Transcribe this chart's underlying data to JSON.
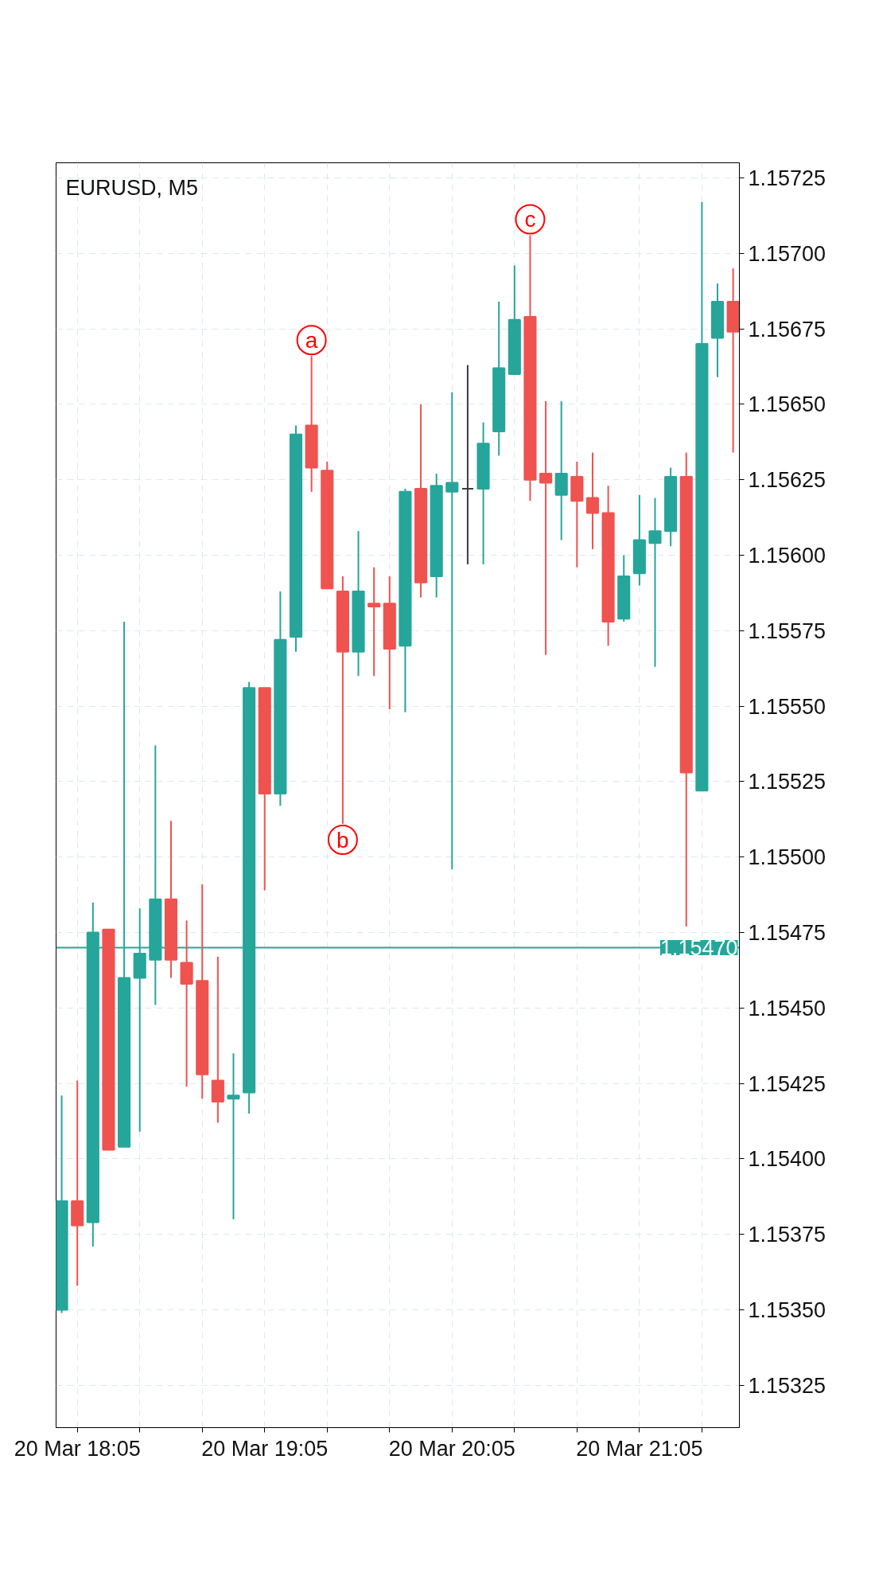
{
  "chart_data": {
    "type": "candlestick",
    "title": "EURUSD, M5",
    "categories": [
      null,
      "20 Mar 18:05",
      null,
      null,
      null,
      null,
      null,
      null,
      null,
      null,
      null,
      null,
      null,
      "20 Mar 19:05",
      null,
      null,
      null,
      null,
      null,
      null,
      null,
      null,
      null,
      null,
      null,
      "20 Mar 20:05",
      null,
      null,
      null,
      null,
      null,
      null,
      null,
      null,
      null,
      null,
      null,
      "20 Mar 21:05",
      null,
      null,
      null,
      null,
      null,
      null
    ],
    "ohlc": [
      [
        1.1535,
        1.15421,
        1.15349,
        1.15386
      ],
      [
        1.15386,
        1.15426,
        1.15358,
        1.15378
      ],
      [
        1.15379,
        1.15485,
        1.15371,
        1.15475
      ],
      [
        1.15476,
        1.15476,
        1.15403,
        1.15403
      ],
      [
        1.15404,
        1.15578,
        1.15404,
        1.1546
      ],
      [
        1.1546,
        1.15483,
        1.15409,
        1.15468
      ],
      [
        1.15466,
        1.15537,
        1.15451,
        1.15486
      ],
      [
        1.15486,
        1.15512,
        1.1546,
        1.15466
      ],
      [
        1.15465,
        1.15479,
        1.15424,
        1.15458
      ],
      [
        1.15459,
        1.15491,
        1.1542,
        1.15428
      ],
      [
        1.15426,
        1.15467,
        1.15412,
        1.15419
      ],
      [
        1.1542,
        1.15435,
        1.1538,
        1.15421
      ],
      [
        1.15422,
        1.15558,
        1.15415,
        1.15556
      ],
      [
        1.15556,
        1.15556,
        1.15489,
        1.15521
      ],
      [
        1.15521,
        1.15588,
        1.15517,
        1.15572
      ],
      [
        1.15573,
        1.15643,
        1.15568,
        1.1564
      ],
      [
        1.15643,
        1.15666,
        1.15621,
        1.15629
      ],
      [
        1.15628,
        1.15631,
        1.15589,
        1.15589
      ],
      [
        1.15588,
        1.15593,
        1.15511,
        1.15568
      ],
      [
        1.15568,
        1.15608,
        1.1556,
        1.15588
      ],
      [
        1.15584,
        1.15596,
        1.1556,
        1.15583
      ],
      [
        1.15584,
        1.15593,
        1.15549,
        1.15569
      ],
      [
        1.1557,
        1.15622,
        1.15548,
        1.15621
      ],
      [
        1.15622,
        1.1565,
        1.15586,
        1.15591
      ],
      [
        1.15593,
        1.15627,
        1.15586,
        1.15623
      ],
      [
        1.15621,
        1.15654,
        1.15496,
        1.15624
      ],
      [
        1.15622,
        1.15663,
        1.15597,
        1.15622
      ],
      [
        1.15622,
        1.15644,
        1.15597,
        1.15637
      ],
      [
        1.15641,
        1.15684,
        1.15633,
        1.15662
      ],
      [
        1.1566,
        1.15696,
        1.1566,
        1.15678
      ],
      [
        1.15679,
        1.15706,
        1.15618,
        1.15625
      ],
      [
        1.15627,
        1.15651,
        1.15567,
        1.15624
      ],
      [
        1.1562,
        1.15651,
        1.15605,
        1.15627
      ],
      [
        1.15626,
        1.15631,
        1.15596,
        1.15618
      ],
      [
        1.15619,
        1.15634,
        1.15602,
        1.15614
      ],
      [
        1.15614,
        1.15623,
        1.1557,
        1.15578
      ],
      [
        1.15579,
        1.156,
        1.15578,
        1.15593
      ],
      [
        1.15594,
        1.1562,
        1.1559,
        1.15605
      ],
      [
        1.15604,
        1.15619,
        1.15563,
        1.15608
      ],
      [
        1.15608,
        1.15629,
        1.15603,
        1.15626
      ],
      [
        1.15626,
        1.15634,
        1.15477,
        1.15528
      ],
      [
        1.15522,
        1.15717,
        1.15522,
        1.1567
      ],
      [
        1.15672,
        1.1569,
        1.15659,
        1.15684
      ],
      [
        1.15684,
        1.15695,
        1.15634,
        1.15674
      ]
    ],
    "colors": [
      "#26a69a",
      "#ef5350",
      "#26a69a",
      "#ef5350",
      "#26a69a",
      "#26a69a",
      "#26a69a",
      "#ef5350",
      "#ef5350",
      "#ef5350",
      "#ef5350",
      "#26a69a",
      "#26a69a",
      "#ef5350",
      "#26a69a",
      "#26a69a",
      "#ef5350",
      "#ef5350",
      "#ef5350",
      "#26a69a",
      "#ef5350",
      "#ef5350",
      "#26a69a",
      "#ef5350",
      "#26a69a",
      "#26a69a",
      "#3c3c46",
      "#26a69a",
      "#26a69a",
      "#26a69a",
      "#ef5350",
      "#ef5350",
      "#26a69a",
      "#ef5350",
      "#ef5350",
      "#ef5350",
      "#26a69a",
      "#26a69a",
      "#26a69a",
      "#26a69a",
      "#ef5350",
      "#26a69a",
      "#26a69a",
      "#ef5350"
    ],
    "ylim": [
      1.15311,
      1.1573
    ],
    "yticks": [
      1.15325,
      {
        "value": 1.1535,
        "label": "1.15350"
      },
      1.15375,
      {
        "value": 1.154,
        "label": "1.15400"
      },
      1.15425,
      {
        "value": 1.1545,
        "label": "1.15450"
      },
      1.15475,
      {
        "value": 1.155,
        "label": "1.15500"
      },
      1.15525,
      {
        "value": 1.1555,
        "label": "1.15550"
      },
      1.15575,
      {
        "value": 1.156,
        "label": "1.15600"
      },
      1.15625,
      {
        "value": 1.1565,
        "label": "1.15650"
      },
      1.15675,
      {
        "value": 1.157,
        "label": "1.15700"
      },
      1.15725
    ],
    "ref_lines": [
      {
        "axis": "y",
        "value": 1.1547,
        "label": "1.15470",
        "color": "#26a69a"
      }
    ],
    "annotations": [
      {
        "text": "a",
        "y": 1.15666
      },
      {
        "text": "b",
        "y": 1.15511
      },
      {
        "text": "c",
        "y": 1.15706
      }
    ],
    "grid": true
  }
}
